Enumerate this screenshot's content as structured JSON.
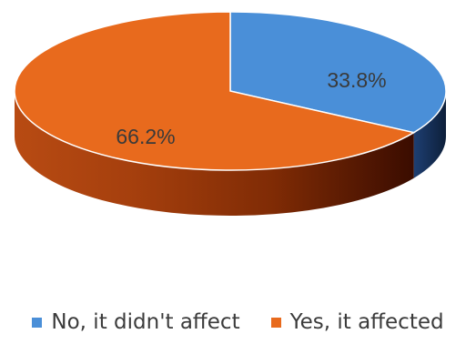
{
  "chart_data": {
    "type": "pie",
    "style": "3d",
    "title": "",
    "series": [
      {
        "values": [
          33.8,
          66.2
        ]
      }
    ],
    "categories": [
      "No, it didn't affect",
      "Yes, it affected"
    ],
    "data_labels": [
      "33.8%",
      "66.2%"
    ],
    "legend": {
      "placement": "bottom",
      "items": [
        "No, it didn't affect",
        "Yes, it affected"
      ]
    },
    "colors": {
      "No, it didn't affect": "#4a8fd8",
      "Yes, it affected": "#e86a1d"
    },
    "label_color": "#3a3a3a"
  }
}
